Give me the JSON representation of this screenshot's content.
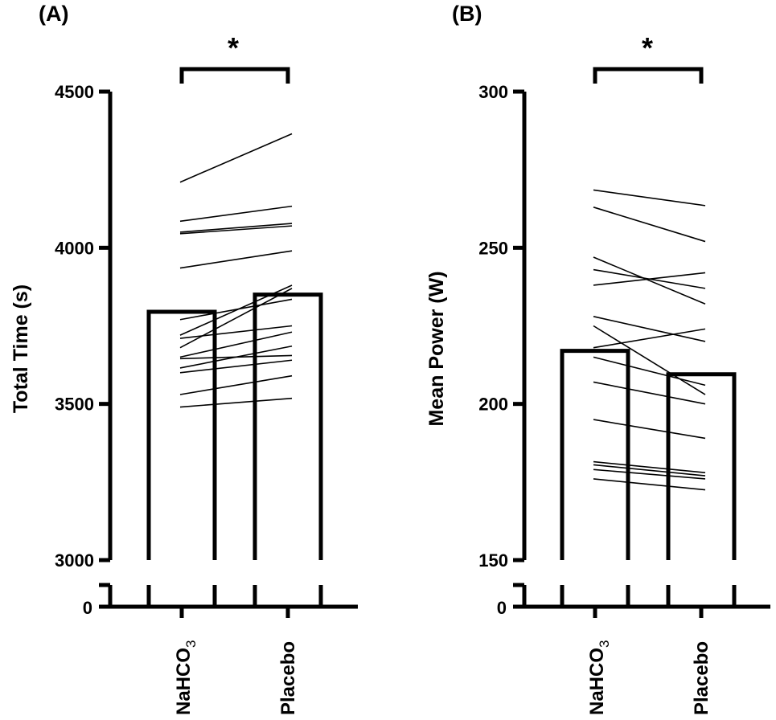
{
  "chart_data": [
    {
      "type": "bar",
      "panel_label": "(A)",
      "ylabel": "Total Time (s)",
      "categories": [
        "NaHCO3",
        "Placebo"
      ],
      "values": [
        3795,
        3850
      ],
      "ylim": [
        3000,
        4500
      ],
      "yticks": [
        3000,
        3500,
        4000,
        4500
      ],
      "axis_break_label": "0",
      "significance": "*",
      "individual_pairs": [
        [
          3490,
          3518
        ],
        [
          3530,
          3590
        ],
        [
          3600,
          3640
        ],
        [
          3615,
          3685
        ],
        [
          3645,
          3655
        ],
        [
          3650,
          3730
        ],
        [
          3680,
          3870
        ],
        [
          3710,
          3750
        ],
        [
          3720,
          3880
        ],
        [
          3770,
          3835
        ],
        [
          3935,
          3990
        ],
        [
          4045,
          4070
        ],
        [
          4050,
          4078
        ],
        [
          4085,
          4133
        ],
        [
          4210,
          4365
        ]
      ]
    },
    {
      "type": "bar",
      "panel_label": "(B)",
      "ylabel": "Mean Power (W)",
      "categories": [
        "NaHCO3",
        "Placebo"
      ],
      "values": [
        217,
        209.5
      ],
      "ylim": [
        150,
        300
      ],
      "yticks": [
        150,
        200,
        250,
        300
      ],
      "axis_break_label": "0",
      "significance": "*",
      "individual_pairs": [
        [
          176,
          172.5
        ],
        [
          179,
          176
        ],
        [
          180.5,
          177
        ],
        [
          181.5,
          178
        ],
        [
          195,
          189
        ],
        [
          207,
          200
        ],
        [
          215,
          206
        ],
        [
          218,
          224
        ],
        [
          225,
          203
        ],
        [
          228,
          220
        ],
        [
          238,
          242
        ],
        [
          243,
          237
        ],
        [
          247,
          232
        ],
        [
          263,
          252
        ],
        [
          268.5,
          263.5
        ]
      ]
    }
  ]
}
